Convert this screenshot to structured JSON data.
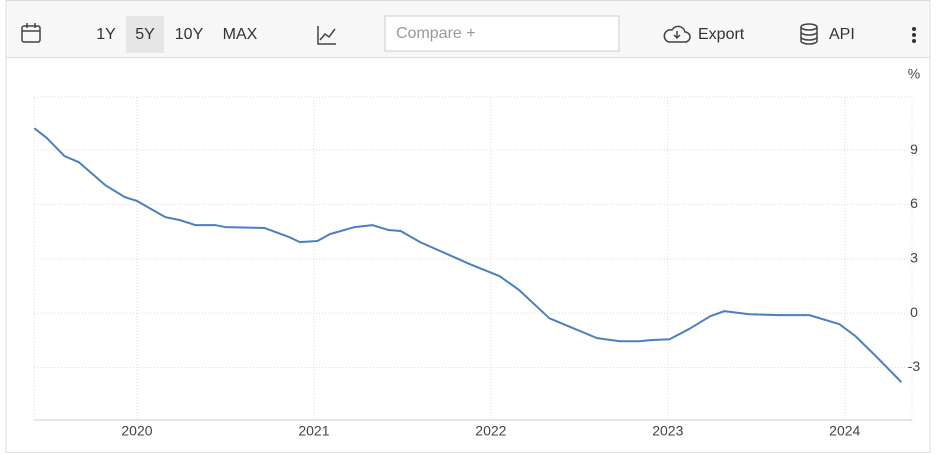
{
  "toolbar": {
    "ranges": [
      "1Y",
      "5Y",
      "10Y",
      "MAX"
    ],
    "selected_range": 1,
    "compare_placeholder": "Compare +",
    "export": "Export",
    "api": "API"
  },
  "chart_data": {
    "type": "line",
    "unit": "%",
    "x": [
      2019.42,
      2019.49,
      2019.59,
      2019.67,
      2019.82,
      2019.93,
      2020.0,
      2020.16,
      2020.24,
      2020.33,
      2020.44,
      2020.5,
      2020.72,
      2020.86,
      2020.92,
      2021.02,
      2021.09,
      2021.23,
      2021.33,
      2021.42,
      2021.49,
      2021.6,
      2021.88,
      2022.05,
      2022.16,
      2022.33,
      2022.45,
      2022.6,
      2022.73,
      2022.84,
      2022.9,
      2023.01,
      2023.12,
      2023.24,
      2023.32,
      2023.46,
      2023.63,
      2023.8,
      2023.97,
      2024.06,
      2024.17,
      2024.32
    ],
    "values": [
      10.2,
      9.67,
      8.67,
      8.34,
      7.07,
      6.41,
      6.19,
      5.3,
      5.14,
      4.86,
      4.86,
      4.75,
      4.7,
      4.2,
      3.92,
      3.98,
      4.36,
      4.75,
      4.86,
      4.59,
      4.53,
      3.92,
      2.71,
      2.04,
      1.27,
      -0.28,
      -0.77,
      -1.38,
      -1.55,
      -1.55,
      -1.49,
      -1.44,
      -0.88,
      -0.17,
      0.11,
      -0.06,
      -0.11,
      -0.11,
      -0.61,
      -1.27,
      -2.32,
      -3.81
    ],
    "color": "#4a7fc1",
    "xlim": [
      2019.418,
      2024.38
    ],
    "xticks": [
      2020,
      2021,
      2022,
      2023,
      2024
    ],
    "ylim": [
      -5.9,
      11.93
    ],
    "yticks": [
      9,
      6,
      3,
      0,
      -3
    ],
    "grid": true
  }
}
